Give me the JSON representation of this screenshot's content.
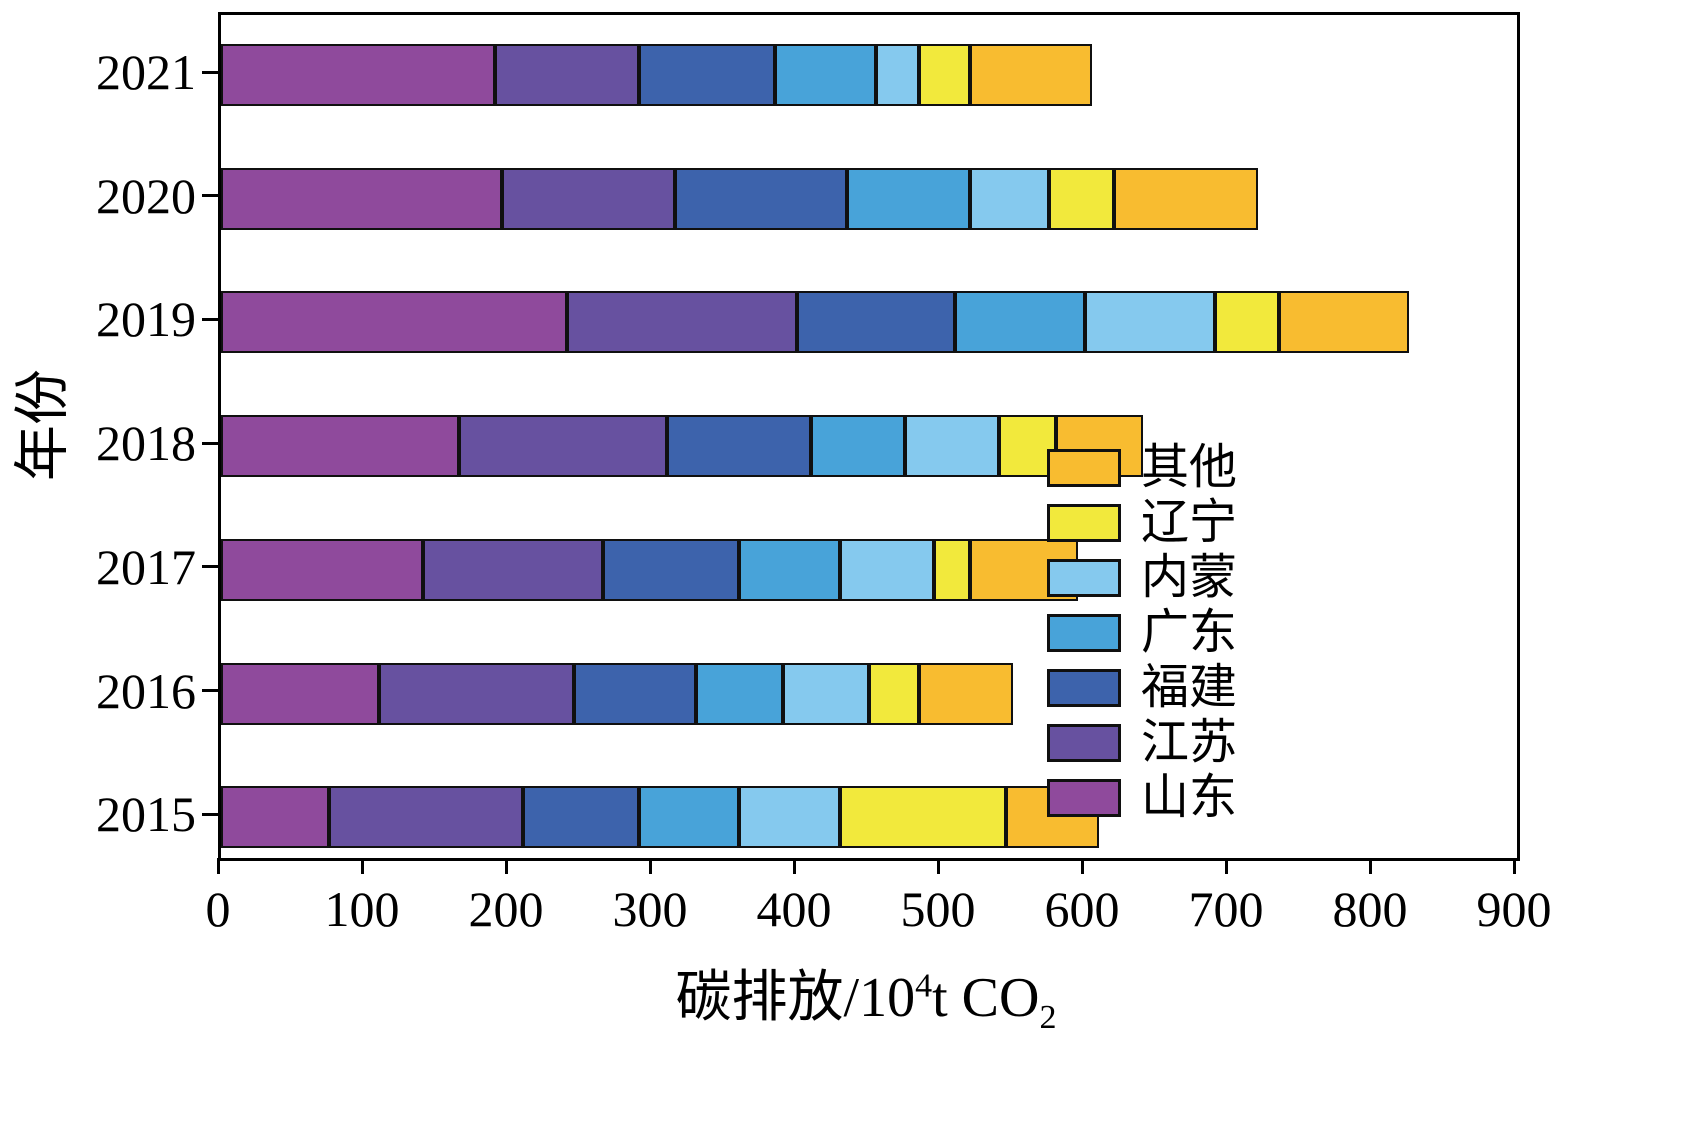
{
  "chart_data": {
    "type": "bar",
    "orientation": "horizontal",
    "stacked": true,
    "title": "",
    "xlabel": "碳排放/10⁴t CO₂",
    "xlabel_parts": {
      "prefix": "碳排放/10",
      "sup": "4",
      "mid": "t CO",
      "sub": "2"
    },
    "ylabel": "年份",
    "xlim": [
      0,
      900
    ],
    "xticks": [
      0,
      100,
      200,
      300,
      400,
      500,
      600,
      700,
      800,
      900
    ],
    "grid": false,
    "categories": [
      "2021",
      "2020",
      "2019",
      "2018",
      "2017",
      "2016",
      "2015"
    ],
    "series": [
      {
        "name": "山东",
        "color": "#8F4A9C",
        "values": [
          190,
          195,
          240,
          165,
          140,
          110,
          75
        ]
      },
      {
        "name": "江苏",
        "color": "#6751A0",
        "values": [
          100,
          120,
          160,
          145,
          125,
          135,
          135
        ]
      },
      {
        "name": "福建",
        "color": "#3D63AC",
        "values": [
          95,
          120,
          110,
          100,
          95,
          85,
          80
        ]
      },
      {
        "name": "广东",
        "color": "#48A3D9",
        "values": [
          70,
          85,
          90,
          65,
          70,
          60,
          70
        ]
      },
      {
        "name": "内蒙",
        "color": "#85C9EE",
        "values": [
          30,
          55,
          90,
          65,
          65,
          60,
          70
        ]
      },
      {
        "name": "辽宁",
        "color": "#F2E93C",
        "values": [
          35,
          45,
          45,
          40,
          25,
          35,
          115
        ]
      },
      {
        "name": "其他",
        "color": "#F8BC30",
        "values": [
          85,
          100,
          90,
          60,
          75,
          65,
          65
        ]
      }
    ],
    "legend": [
      "其他",
      "辽宁",
      "内蒙",
      "广东",
      "福建",
      "江苏",
      "山东"
    ],
    "legend_position": "right-inside"
  }
}
